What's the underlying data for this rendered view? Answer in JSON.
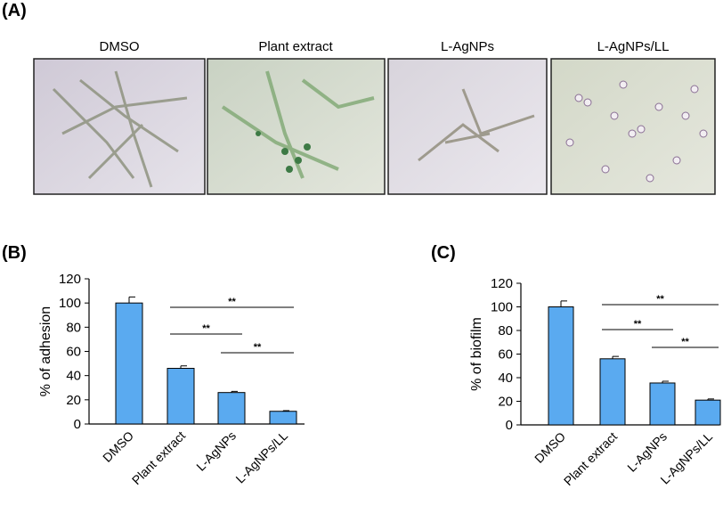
{
  "panels": [
    "(A)",
    "(B)",
    "(C)"
  ],
  "images": [
    "DMSO",
    "Plant extract",
    "L-AgNPs",
    "L-AgNPs/LL"
  ],
  "chart_data": [
    {
      "type": "bar",
      "y_label": "% of adhesion",
      "categories": [
        "DMSO",
        "Plant extract",
        "L-AgNPs",
        "L-AgNPs/LL"
      ],
      "values": [
        100,
        46,
        26,
        10.5
      ],
      "errors": [
        5,
        2,
        1,
        0.5
      ],
      "color": "#5aaaf0",
      "ylim": [
        0,
        120
      ],
      "yticks": [
        0,
        20,
        40,
        60,
        80,
        100,
        120
      ],
      "comparisons": [
        {
          "label": "**",
          "between": [
            "Plant extract",
            "L-AgNPs/LL"
          ]
        },
        {
          "label": "**",
          "between": [
            "Plant extract",
            "L-AgNPs"
          ]
        },
        {
          "label": "**",
          "between": [
            "L-AgNPs",
            "L-AgNPs/LL"
          ]
        }
      ]
    },
    {
      "type": "bar",
      "y_label": "% of biofilm",
      "categories": [
        "DMSO",
        "Plant extract",
        "L-AgNPs",
        "L-AgNPs/LL"
      ],
      "values": [
        100,
        56,
        35.5,
        21
      ],
      "errors": [
        5,
        2,
        1.5,
        1
      ],
      "color": "#5aaaf0",
      "ylim": [
        0,
        120
      ],
      "yticks": [
        0,
        20,
        40,
        60,
        80,
        100,
        120
      ],
      "comparisons": [
        {
          "label": "**",
          "between": [
            "Plant extract",
            "L-AgNPs/LL"
          ]
        },
        {
          "label": "**",
          "between": [
            "Plant extract",
            "L-AgNPs"
          ]
        },
        {
          "label": "**",
          "between": [
            "L-AgNPs",
            "L-AgNPs/LL"
          ]
        }
      ]
    }
  ]
}
